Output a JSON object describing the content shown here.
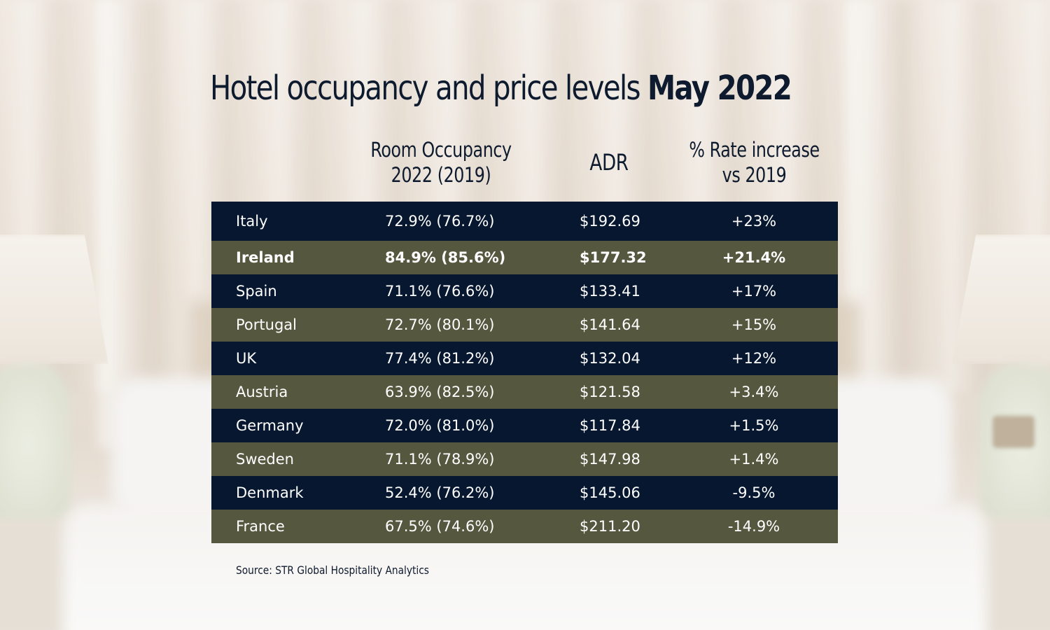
{
  "title": {
    "regular": "Hotel occupancy and price levels ",
    "bold": "May 2022"
  },
  "columns": {
    "occupancy": "Room Occupancy\n2022 (2019)",
    "adr": "ADR",
    "rate": "% Rate increase\nvs 2019"
  },
  "rows": [
    {
      "country": "Italy",
      "occupancy": "72.9% (76.7%)",
      "adr": "$192.69",
      "rate": "+23%"
    },
    {
      "country": "Ireland",
      "occupancy": "84.9% (85.6%)",
      "adr": "$177.32",
      "rate": "+21.4%",
      "highlight": true
    },
    {
      "country": "Spain",
      "occupancy": "71.1% (76.6%)",
      "adr": "$133.41",
      "rate": "+17%"
    },
    {
      "country": "Portugal",
      "occupancy": "72.7% (80.1%)",
      "adr": "$141.64",
      "rate": "+15%"
    },
    {
      "country": "UK",
      "occupancy": "77.4% (81.2%)",
      "adr": "$132.04",
      "rate": "+12%"
    },
    {
      "country": "Austria",
      "occupancy": "63.9% (82.5%)",
      "adr": "$121.58",
      "rate": "+3.4%"
    },
    {
      "country": "Germany",
      "occupancy": "72.0% (81.0%)",
      "adr": "$117.84",
      "rate": "+1.5%"
    },
    {
      "country": "Sweden",
      "occupancy": "71.1% (78.9%)",
      "adr": "$147.98",
      "rate": "+1.4%"
    },
    {
      "country": "Denmark",
      "occupancy": "52.4% (76.2%)",
      "adr": "$145.06",
      "rate": "-9.5%"
    },
    {
      "country": "France",
      "occupancy": "67.5% (74.6%)",
      "adr": "$211.20",
      "rate": "-14.9%"
    }
  ],
  "source": "Source: STR Global Hospitality Analytics",
  "colors": {
    "title_text": "#0e1a2d",
    "row_dark": "#06172f",
    "row_olive": "#56573f",
    "row_text": "#ffffff"
  },
  "chart_data": {
    "type": "table",
    "title": "Hotel occupancy and price levels May 2022",
    "columns": [
      "",
      "Room Occupancy 2022 (2019)",
      "ADR",
      "% Rate increase vs 2019"
    ],
    "rows": [
      [
        "Italy",
        "72.9% (76.7%)",
        "$192.69",
        "+23%"
      ],
      [
        "Ireland",
        "84.9% (85.6%)",
        "$177.32",
        "+21.4%"
      ],
      [
        "Spain",
        "71.1% (76.6%)",
        "$133.41",
        "+17%"
      ],
      [
        "Portugal",
        "72.7% (80.1%)",
        "$141.64",
        "+15%"
      ],
      [
        "UK",
        "77.4% (81.2%)",
        "$132.04",
        "+12%"
      ],
      [
        "Austria",
        "63.9% (82.5%)",
        "$121.58",
        "+3.4%"
      ],
      [
        "Germany",
        "72.0% (81.0%)",
        "$117.84",
        "+1.5%"
      ],
      [
        "Sweden",
        "71.1% (78.9%)",
        "$147.98",
        "+1.4%"
      ],
      [
        "Denmark",
        "52.4% (76.2%)",
        "$145.06",
        "-9.5%"
      ],
      [
        "France",
        "67.5% (74.6%)",
        "$211.20",
        "-14.9%"
      ]
    ],
    "highlighted_row": "Ireland"
  }
}
